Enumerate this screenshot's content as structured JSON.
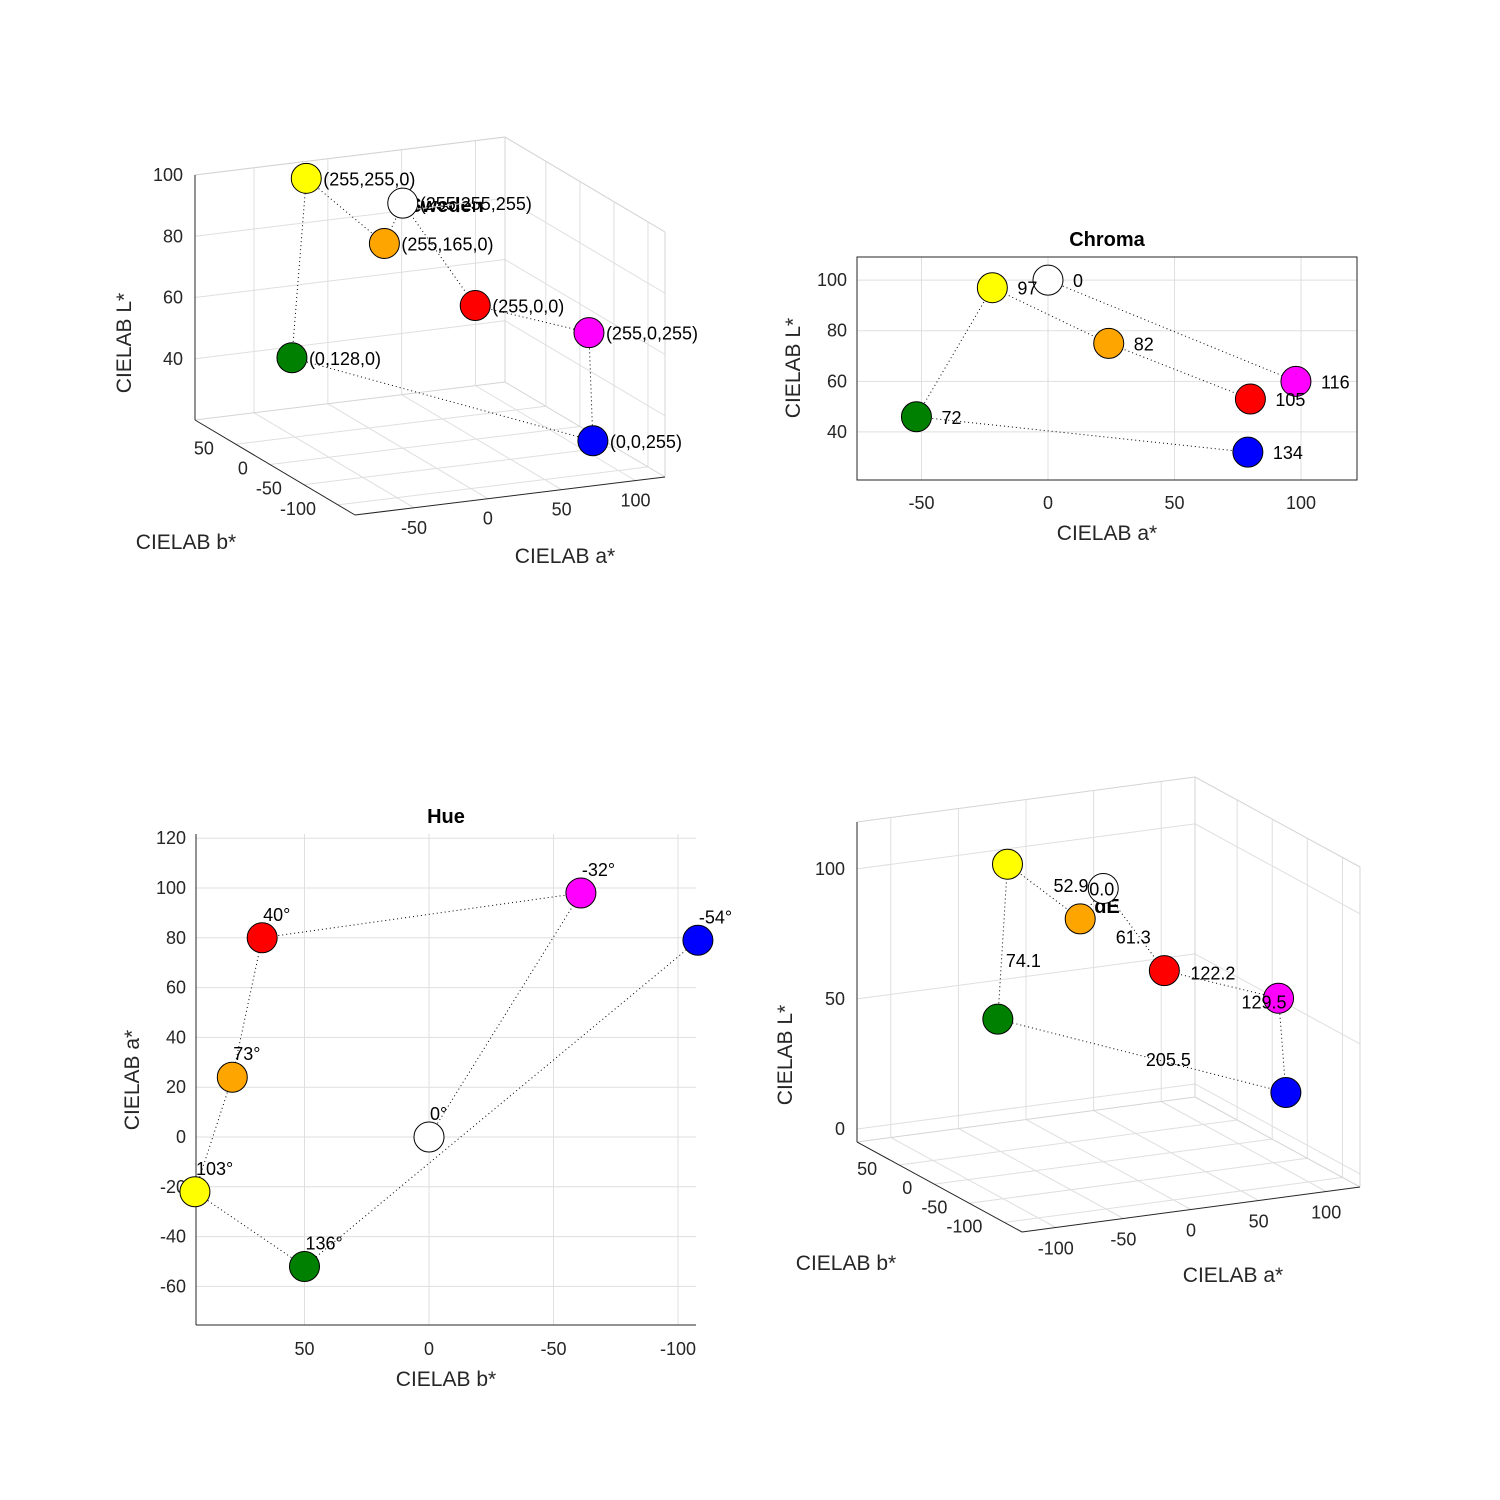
{
  "colors": {
    "white": "#ffffff",
    "yellow": "#ffff00",
    "orange": "#ffa500",
    "red": "#ff0000",
    "magenta": "#ff00ff",
    "blue": "#0000ff",
    "green": "#008000"
  },
  "chart_data": [
    {
      "type": "scatter",
      "title": "Sweden",
      "xlabel": "CIELAB a*",
      "ylabel": "CIELAB b*",
      "zlabel": "CIELAB L*",
      "xticks": [
        "-50",
        "0",
        "50",
        "100"
      ],
      "yticks": [
        "-100",
        "-50",
        "0",
        "50"
      ],
      "zticks": [
        "40",
        "60",
        "80",
        "100"
      ],
      "grid": true,
      "points": [
        {
          "color": "white",
          "a": 0,
          "b": 0,
          "L": 100,
          "label": "(255,255,255)"
        },
        {
          "color": "yellow",
          "a": -22,
          "b": 94,
          "L": 97,
          "label": "(255,255,0)"
        },
        {
          "color": "orange",
          "a": 24,
          "b": 79,
          "L": 75,
          "label": "(255,165,0)"
        },
        {
          "color": "red",
          "a": 80,
          "b": 67,
          "L": 53,
          "label": "(255,0,0)"
        },
        {
          "color": "magenta",
          "a": 98,
          "b": -61,
          "L": 60,
          "label": "(255,0,255)"
        },
        {
          "color": "blue",
          "a": 79,
          "b": -108,
          "L": 32,
          "label": "(0,0,255)"
        },
        {
          "color": "green",
          "a": -52,
          "b": 50,
          "L": 46,
          "label": "(0,128,0)"
        }
      ]
    },
    {
      "type": "scatter",
      "title": "Chroma",
      "xlabel": "CIELAB a*",
      "ylabel": "CIELAB L*",
      "xticks": [
        "-50",
        "0",
        "50",
        "100"
      ],
      "yticks": [
        "40",
        "60",
        "80",
        "100"
      ],
      "grid": true,
      "points": [
        {
          "color": "white",
          "a": 0,
          "L": 100,
          "label": "0"
        },
        {
          "color": "yellow",
          "a": -22,
          "L": 97,
          "label": "97"
        },
        {
          "color": "orange",
          "a": 24,
          "L": 75,
          "label": "82"
        },
        {
          "color": "magenta",
          "a": 98,
          "L": 60,
          "label": "116"
        },
        {
          "color": "red",
          "a": 80,
          "L": 53,
          "label": "105"
        },
        {
          "color": "green",
          "a": -52,
          "L": 46,
          "label": "72"
        },
        {
          "color": "blue",
          "a": 79,
          "L": 32,
          "label": "134"
        }
      ]
    },
    {
      "type": "scatter",
      "title": "Hue",
      "xlabel": "CIELAB b*",
      "ylabel": "CIELAB a*",
      "xticks": [
        "50",
        "0",
        "-50",
        "-100"
      ],
      "yticks": [
        "-60",
        "-40",
        "-20",
        "0",
        "20",
        "40",
        "60",
        "80",
        "100",
        "120"
      ],
      "x_reversed": true,
      "grid": true,
      "points": [
        {
          "color": "white",
          "b": 0,
          "a": 0,
          "label": "0°"
        },
        {
          "color": "red",
          "b": 67,
          "a": 80,
          "label": "40°"
        },
        {
          "color": "orange",
          "b": 79,
          "a": 24,
          "label": "73°"
        },
        {
          "color": "yellow",
          "b": 94,
          "a": -22,
          "label": "103°"
        },
        {
          "color": "green",
          "b": 50,
          "a": -52,
          "label": "136°"
        },
        {
          "color": "magenta",
          "b": -61,
          "a": 98,
          "label": "-32°"
        },
        {
          "color": "blue",
          "b": -108,
          "a": 79,
          "label": "-54°"
        }
      ]
    },
    {
      "type": "scatter",
      "title": "dE",
      "xlabel": "CIELAB a*",
      "ylabel": "CIELAB b*",
      "zlabel": "CIELAB L*",
      "xticks": [
        "-100",
        "-50",
        "0",
        "50",
        "100"
      ],
      "yticks": [
        "-100",
        "-50",
        "0",
        "50"
      ],
      "zticks": [
        "0",
        "50",
        "100"
      ],
      "grid": true,
      "points": [
        {
          "color": "white",
          "a": 0,
          "b": 0,
          "L": 100,
          "label": "0.0"
        },
        {
          "color": "yellow",
          "a": -22,
          "b": 94,
          "L": 97,
          "label": ""
        },
        {
          "color": "orange",
          "a": 24,
          "b": 79,
          "L": 75,
          "label": "52.9"
        },
        {
          "color": "red",
          "a": 80,
          "b": 67,
          "L": 53,
          "label": "61.3"
        },
        {
          "color": "magenta",
          "a": 98,
          "b": -61,
          "L": 60,
          "label": "122.2"
        },
        {
          "color": "blue",
          "a": 79,
          "b": -108,
          "L": 32,
          "label": "129.5"
        },
        {
          "color": "green",
          "a": -52,
          "b": 50,
          "L": 46,
          "label": "205.5"
        }
      ],
      "segment_labels": [
        {
          "from": "white",
          "to": "orange",
          "label": "52.9"
        },
        {
          "from": "yellow",
          "to": "green",
          "label": "74.1"
        }
      ]
    }
  ]
}
